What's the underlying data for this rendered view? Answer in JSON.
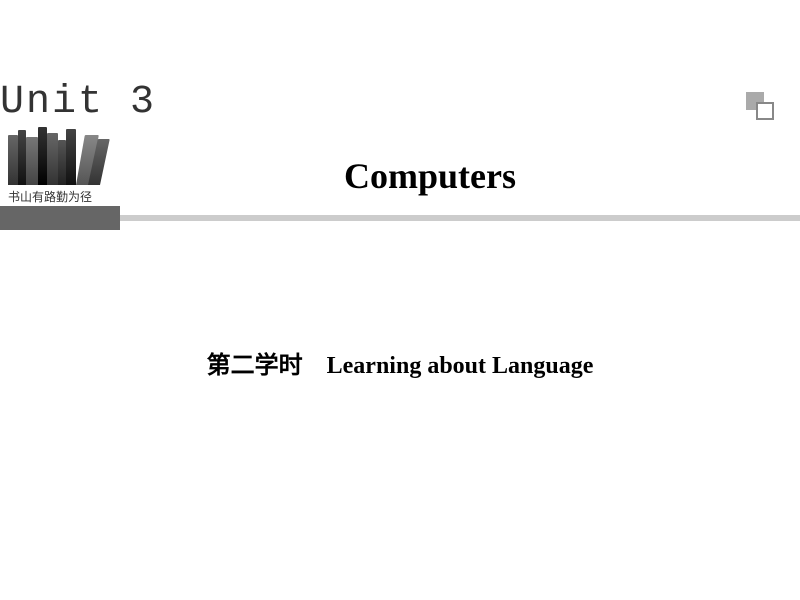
{
  "header": {
    "unit_label": "Unit 3",
    "books_caption": "书山有路勤为径",
    "main_title": "Computers"
  },
  "content": {
    "subtitle_cn": "第二学时",
    "subtitle_space": "　",
    "subtitle_en": "Learning about Language"
  },
  "styling": {
    "background_color": "#ffffff",
    "unit_label_color": "#333333",
    "unit_label_fontsize": 40,
    "title_color": "#000000",
    "title_fontsize": 36,
    "subtitle_fontsize": 24,
    "divider_dark_color": "#666666",
    "divider_light_color": "#cccccc",
    "corner_fill_color": "#aaaaaa",
    "corner_border_color": "#888888",
    "caption_fontsize": 12
  }
}
